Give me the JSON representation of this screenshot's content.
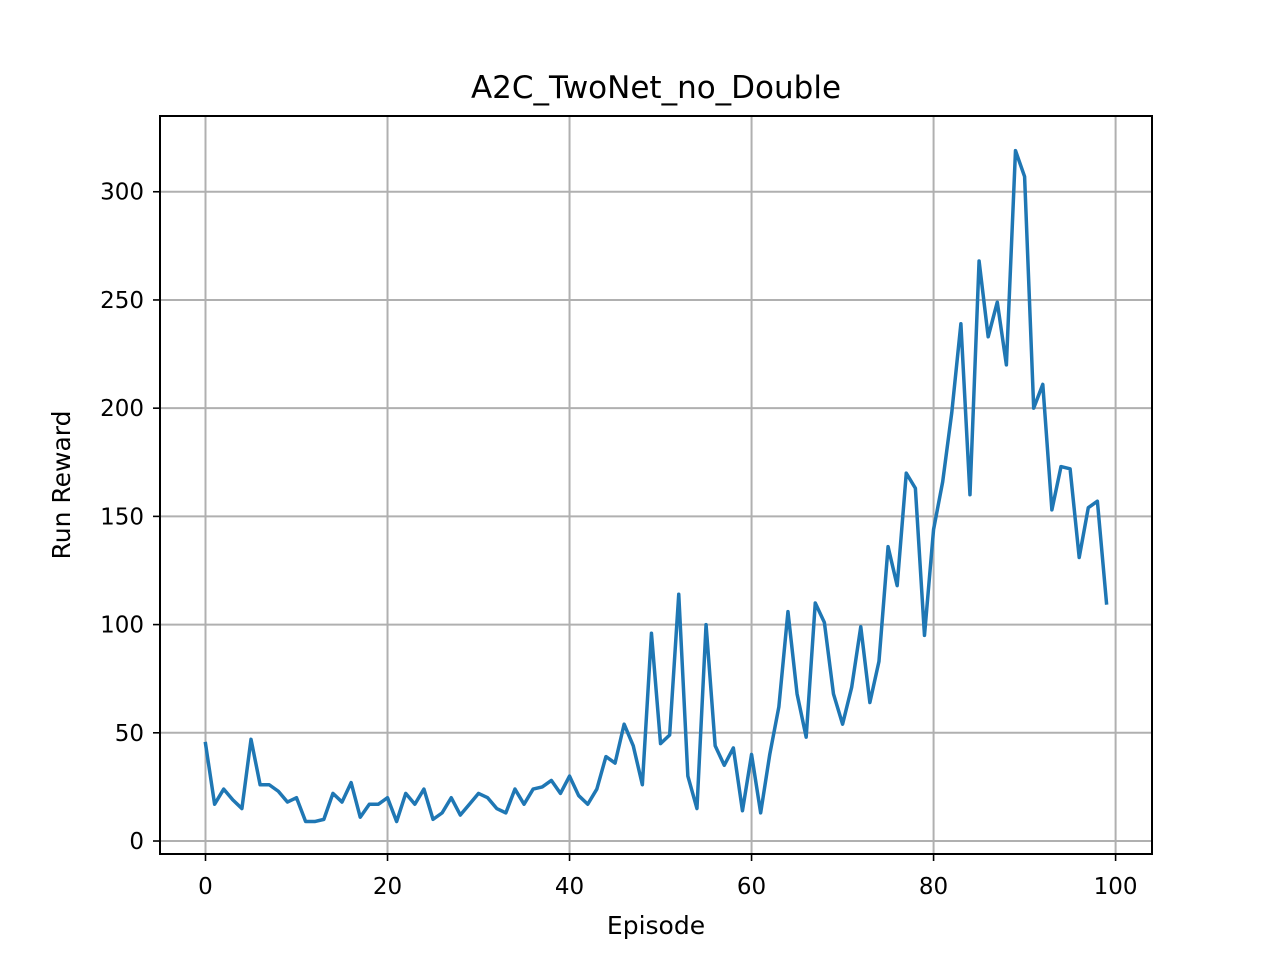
{
  "chart_data": {
    "type": "line",
    "title": "A2C_TwoNet_no_Double",
    "xlabel": "Episode",
    "ylabel": "Run Reward",
    "xlim": [
      -5,
      104
    ],
    "ylim": [
      -6,
      335
    ],
    "xticks": [
      0,
      20,
      40,
      60,
      80,
      100
    ],
    "yticks": [
      0,
      50,
      100,
      150,
      200,
      250,
      300
    ],
    "grid": true,
    "series": [
      {
        "color": "#1f77b4",
        "x": [
          0,
          1,
          2,
          3,
          4,
          5,
          6,
          7,
          8,
          9,
          10,
          11,
          12,
          13,
          14,
          15,
          16,
          17,
          18,
          19,
          20,
          21,
          22,
          23,
          24,
          25,
          26,
          27,
          28,
          29,
          30,
          31,
          32,
          33,
          34,
          35,
          36,
          37,
          38,
          39,
          40,
          41,
          42,
          43,
          44,
          45,
          46,
          47,
          48,
          49,
          50,
          51,
          52,
          53,
          54,
          55,
          56,
          57,
          58,
          59,
          60,
          61,
          62,
          63,
          64,
          65,
          66,
          67,
          68,
          69,
          70,
          71,
          72,
          73,
          74,
          75,
          76,
          77,
          78,
          79,
          80,
          81,
          82,
          83,
          84,
          85,
          86,
          87,
          88,
          89,
          90,
          91,
          92,
          93,
          94,
          95,
          96,
          97,
          98,
          99
        ],
        "values": [
          45,
          17,
          24,
          19,
          15,
          47,
          26,
          26,
          23,
          18,
          20,
          9,
          9,
          10,
          22,
          18,
          27,
          11,
          17,
          17,
          20,
          9,
          22,
          17,
          24,
          10,
          13,
          20,
          12,
          17,
          22,
          20,
          15,
          13,
          24,
          17,
          24,
          25,
          28,
          22,
          30,
          21,
          17,
          24,
          39,
          36,
          54,
          44,
          26,
          96,
          45,
          49,
          114,
          30,
          15,
          100,
          44,
          35,
          43,
          14,
          40,
          13,
          40,
          62,
          106,
          68,
          48,
          110,
          101,
          68,
          54,
          71,
          99,
          64,
          83,
          136,
          118,
          170,
          163,
          95,
          144,
          166,
          198,
          239,
          160,
          268,
          233,
          249,
          220,
          319,
          307,
          200,
          211,
          153,
          173,
          172,
          131,
          154,
          157,
          110
        ]
      }
    ]
  }
}
